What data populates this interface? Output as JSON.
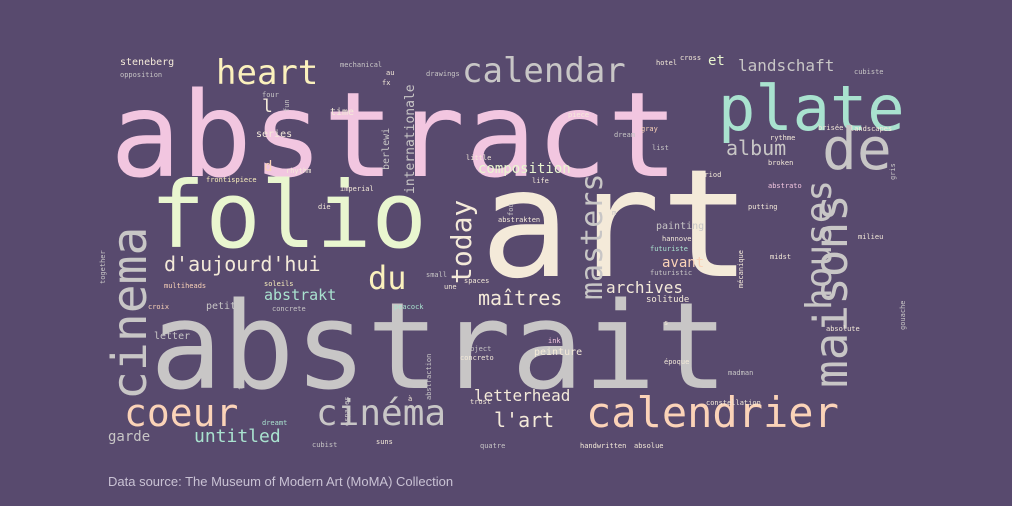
{
  "background_color": "#584a6e",
  "caption": "Data source: The Museum of Modern Art (MoMA) Collection",
  "words": [
    {
      "text": "abstract",
      "color": "#f2c6e0"
    },
    {
      "text": "art",
      "color": "#f4ead9"
    },
    {
      "text": "abstrait",
      "color": "#c8c6c6"
    },
    {
      "text": "folio",
      "color": "#e9f6cf"
    },
    {
      "text": "plate",
      "color": "#a9e2cf"
    },
    {
      "text": "de",
      "color": "#c8c6c6"
    },
    {
      "text": "maisons",
      "color": "#c8c6c6"
    },
    {
      "text": "cinema",
      "color": "#c8c6c6"
    },
    {
      "text": "calendrier",
      "color": "#fbd3b8"
    },
    {
      "text": "calendar",
      "color": "#c8c6c6"
    },
    {
      "text": "heart",
      "color": "#fbf1bd"
    },
    {
      "text": "coeur",
      "color": "#fbd3b8"
    },
    {
      "text": "cinéma",
      "color": "#c8c6c6"
    },
    {
      "text": "houses",
      "color": "#c8c6c6"
    },
    {
      "text": "masters",
      "color": "#c8c6c6"
    },
    {
      "text": "today",
      "color": "#f4ead9"
    },
    {
      "text": "du",
      "color": "#fbf1bd"
    },
    {
      "text": "d'aujourd'hui",
      "color": "#f4ead9"
    },
    {
      "text": "album",
      "color": "#c8c6c6"
    },
    {
      "text": "maîtres",
      "color": "#f4ead9"
    },
    {
      "text": "l'art",
      "color": "#f4ead9"
    },
    {
      "text": "untitled",
      "color": "#a9e2cf"
    },
    {
      "text": "letterhead",
      "color": "#f4ead9"
    },
    {
      "text": "archives",
      "color": "#f4ead9"
    },
    {
      "text": "composition",
      "color": "#e9f6cf"
    },
    {
      "text": "landschaft",
      "color": "#c8c6c6"
    },
    {
      "text": "internationale",
      "color": "#c8c6c6"
    },
    {
      "text": "abstrakt",
      "color": "#a9e2cf"
    },
    {
      "text": "garde",
      "color": "#c8c6c6"
    },
    {
      "text": "avant",
      "color": "#fbd3b8"
    },
    {
      "text": "et",
      "color": "#e9f6cf"
    },
    {
      "text": "l",
      "color": "#f4ead9"
    },
    {
      "text": "d",
      "color": "#fbd3b8"
    },
    {
      "text": "berlewi",
      "color": "#c8c6c6"
    },
    {
      "text": "painting",
      "color": "#c8c6c6"
    },
    {
      "text": "peinture",
      "color": "#f4ead9"
    },
    {
      "text": "solitude",
      "color": "#f4ead9"
    },
    {
      "text": "petite",
      "color": "#c8c6c6"
    },
    {
      "text": "letter",
      "color": "#c8c6c6"
    },
    {
      "text": "series",
      "color": "#f4ead9"
    },
    {
      "text": "time",
      "color": "#f4ead9"
    },
    {
      "text": "steneberg",
      "color": "#f4ead9"
    },
    {
      "text": "opposition",
      "color": "#c8c6c6"
    },
    {
      "text": "mechanical",
      "color": "#c8c6c6"
    },
    {
      "text": "au",
      "color": "#f4ead9"
    },
    {
      "text": "fx",
      "color": "#f4ead9"
    },
    {
      "text": "drawings",
      "color": "#c8c6c6"
    },
    {
      "text": "piece",
      "color": "#f4ead9"
    },
    {
      "text": "hotel",
      "color": "#f4ead9"
    },
    {
      "text": "cross",
      "color": "#f4ead9"
    },
    {
      "text": "cubiste",
      "color": "#c8c6c6"
    },
    {
      "text": "four",
      "color": "#c8c6c6"
    },
    {
      "text": "fun",
      "color": "#c8c6c6"
    },
    {
      "text": "rythme",
      "color": "#f4ead9"
    },
    {
      "text": "brisée",
      "color": "#f4ead9"
    },
    {
      "text": "landscapes",
      "color": "#f4ead9"
    },
    {
      "text": "gray",
      "color": "#fbd3b8"
    },
    {
      "text": "dream",
      "color": "#c8c6c6"
    },
    {
      "text": "list",
      "color": "#c8c6c6"
    },
    {
      "text": "broken",
      "color": "#f4ead9"
    },
    {
      "text": "gris",
      "color": "#c8c6c6"
    },
    {
      "text": "rhythm",
      "color": "#f4ead9"
    },
    {
      "text": "little",
      "color": "#f4ead9"
    },
    {
      "text": "life",
      "color": "#f4ead9"
    },
    {
      "text": "period",
      "color": "#f4ead9"
    },
    {
      "text": "abstrato",
      "color": "#f2c6e0"
    },
    {
      "text": "putting",
      "color": "#f4ead9"
    },
    {
      "text": "frontispiece",
      "color": "#fbf1bd"
    },
    {
      "text": "imperial",
      "color": "#f4ead9"
    },
    {
      "text": "die",
      "color": "#f4ead9"
    },
    {
      "text": "abstrakten",
      "color": "#f4ead9"
    },
    {
      "text": "fou",
      "color": "#c8c6c6"
    },
    {
      "text": "hannover",
      "color": "#f4ead9"
    },
    {
      "text": "m",
      "color": "#c8c6c6"
    },
    {
      "text": "milieu",
      "color": "#f4ead9"
    },
    {
      "text": "futuriste",
      "color": "#a9e2cf"
    },
    {
      "text": "mécanique",
      "color": "#f4ead9"
    },
    {
      "text": "midst",
      "color": "#f4ead9"
    },
    {
      "text": "futuristic",
      "color": "#c8c6c6"
    },
    {
      "text": "together",
      "color": "#c8c6c6"
    },
    {
      "text": "multiheads",
      "color": "#fbd3b8"
    },
    {
      "text": "soleils",
      "color": "#fbf1bd"
    },
    {
      "text": "small",
      "color": "#c8c6c6"
    },
    {
      "text": "une",
      "color": "#f4ead9"
    },
    {
      "text": "spaces",
      "color": "#f4ead9"
    },
    {
      "text": "croix",
      "color": "#fbd3b8"
    },
    {
      "text": "concrete",
      "color": "#c8c6c6"
    },
    {
      "text": "peacock",
      "color": "#a9e2cf"
    },
    {
      "text": "s",
      "color": "#f4ead9"
    },
    {
      "text": "gouache",
      "color": "#c8c6c6"
    },
    {
      "text": "absolute",
      "color": "#f4ead9"
    },
    {
      "text": "object",
      "color": "#c8c6c6"
    },
    {
      "text": "concreto",
      "color": "#f4ead9"
    },
    {
      "text": "ink",
      "color": "#f2c6e0"
    },
    {
      "text": "époque",
      "color": "#f4ead9"
    },
    {
      "text": "madman",
      "color": "#c8c6c6"
    },
    {
      "text": "abstraction",
      "color": "#c8c6c6"
    },
    {
      "text": "tokyo",
      "color": "#c8c6c6"
    },
    {
      "text": "à",
      "color": "#f4ead9"
    },
    {
      "text": "trost",
      "color": "#f4ead9"
    },
    {
      "text": "constellation",
      "color": "#f4ead9"
    },
    {
      "text": "espaces",
      "color": "#c8c6c6"
    },
    {
      "text": "dreamt",
      "color": "#a9e2cf"
    },
    {
      "text": "cubist",
      "color": "#c8c6c6"
    },
    {
      "text": "suns",
      "color": "#f4ead9"
    },
    {
      "text": "quatre",
      "color": "#c8c6c6"
    },
    {
      "text": "handwritten",
      "color": "#f4ead9"
    },
    {
      "text": "absolue",
      "color": "#f4ead9"
    }
  ]
}
